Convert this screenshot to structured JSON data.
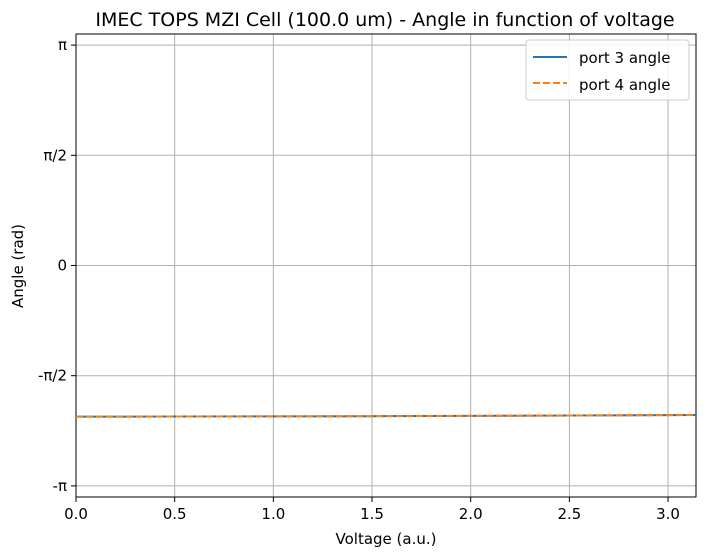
{
  "chart_data": {
    "type": "line",
    "title": "IMEC TOPS MZI Cell (100.0 um)  -  Angle in function of voltage",
    "xlabel": "Voltage (a.u.)",
    "ylabel": "Angle (rad)",
    "xlim": [
      0,
      3.1416
    ],
    "ylim": [
      -3.3,
      3.3
    ],
    "x_ticks": [
      0,
      0.5,
      1.0,
      1.5,
      2.0,
      2.5,
      3.0
    ],
    "x_tick_labels": [
      "0.0",
      "0.5",
      "1.0",
      "1.5",
      "2.0",
      "2.5",
      "3.0"
    ],
    "y_ticks": [
      -3.14159,
      -1.5708,
      0,
      1.5708,
      3.14159
    ],
    "y_tick_labels": [
      "-π",
      "-π/2",
      "0",
      "π/2",
      "π"
    ],
    "grid": true,
    "legend_position": "upper-right",
    "series": [
      {
        "name": "port 3 angle",
        "color": "#1f77b4",
        "style": "solid",
        "x": [
          0,
          0.5,
          1.0,
          1.5,
          2.0,
          2.5,
          3.0,
          3.1416
        ],
        "y": [
          -2.154,
          -2.153,
          -2.151,
          -2.148,
          -2.144,
          -2.139,
          -2.133,
          -2.131
        ]
      },
      {
        "name": "port 4 angle",
        "color": "#ff7f0e",
        "style": "dashed",
        "x": [
          0,
          0.5,
          1.0,
          1.5,
          2.0,
          2.5,
          3.0,
          3.1416
        ],
        "y": [
          -2.154,
          -2.153,
          -2.151,
          -2.148,
          -2.144,
          -2.139,
          -2.133,
          -2.131
        ]
      }
    ]
  }
}
